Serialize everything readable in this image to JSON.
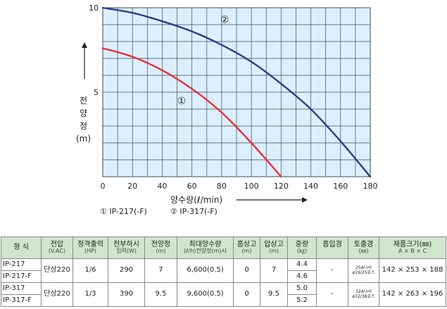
{
  "chart_data": {
    "type": "line",
    "xlabel": "양수량(ℓ/min)",
    "ylabel_chars": [
      "전",
      "양",
      "정"
    ],
    "ylabel_unit": "(m)",
    "xlim": [
      0,
      180
    ],
    "ylim": [
      0,
      10
    ],
    "x_ticks": [
      "0",
      "20",
      "40",
      "60",
      "80",
      "100",
      "120",
      "140",
      "160",
      "180"
    ],
    "y_ticks": [
      "5",
      "10"
    ],
    "grid": true,
    "colors": {
      "plot_bg": "#dcefff",
      "grid": "#3f4a52",
      "series_1": "#e8303a",
      "series_2": "#2c3e86"
    },
    "series": [
      {
        "name": "①",
        "color": "#e8303a",
        "points": [
          [
            0,
            7.6
          ],
          [
            20,
            7.1
          ],
          [
            40,
            6.3
          ],
          [
            60,
            5.2
          ],
          [
            80,
            3.8
          ],
          [
            100,
            2.0
          ],
          [
            120,
            0
          ]
        ]
      },
      {
        "name": "②",
        "color": "#2c3e86",
        "points": [
          [
            0,
            10.0
          ],
          [
            20,
            9.7
          ],
          [
            40,
            9.2
          ],
          [
            60,
            8.6
          ],
          [
            80,
            7.8
          ],
          [
            100,
            6.8
          ],
          [
            120,
            5.5
          ],
          [
            140,
            4.0
          ],
          [
            160,
            2.1
          ],
          [
            180,
            0
          ]
        ]
      }
    ],
    "annotations": [
      {
        "text": "①",
        "x": 53,
        "y": 4.3
      },
      {
        "text": "②",
        "x": 82,
        "y": 9.1
      }
    ],
    "legend": [
      {
        "text": "① IP-217(-F)"
      },
      {
        "text": "② IP-317(-F)"
      }
    ]
  },
  "table": {
    "headers": [
      {
        "main": "형  식",
        "sub": ""
      },
      {
        "main": "전압",
        "sub": "(V.AC)"
      },
      {
        "main": "정격출력",
        "sub": "(HP)"
      },
      {
        "main": "전부하시",
        "sub": "입력(W)"
      },
      {
        "main": "전양정",
        "sub": "(m)"
      },
      {
        "main": "최대양수량",
        "sub": "(ℓ/h)전양정(m)시"
      },
      {
        "main": "흡상고",
        "sub": "(m)"
      },
      {
        "main": "압상고",
        "sub": "(m)"
      },
      {
        "main": "중량",
        "sub": "(㎏)"
      },
      {
        "main": "흡입경",
        "sub": ""
      },
      {
        "main": "토출경",
        "sub": "(㎜)"
      },
      {
        "main": "제품크기(㎜)",
        "sub": "A × B × C"
      }
    ],
    "groups": [
      {
        "models": [
          "IP-217",
          "IP-217-F"
        ],
        "voltage": "단상220",
        "hp": "1/6",
        "watt": "290",
        "head": "7",
        "max_flow": "6,600(0.5)",
        "suction": "0",
        "push": "7",
        "weights": [
          "4.4",
          "4.6"
        ],
        "inlet": "-",
        "outlet": "25A나사\nø19/25호스",
        "size": "142 × 253 × 188"
      },
      {
        "models": [
          "IP-317",
          "IP-317-F"
        ],
        "voltage": "단상220",
        "hp": "1/3",
        "watt": "390",
        "head": "9.5",
        "max_flow": "9,600(0.5)",
        "suction": "0",
        "push": "9.5",
        "weights": [
          "5.0",
          "5.2"
        ],
        "inlet": "-",
        "outlet": "32A나사\nø32/38호스",
        "size": "142 × 263 × 196"
      }
    ]
  }
}
